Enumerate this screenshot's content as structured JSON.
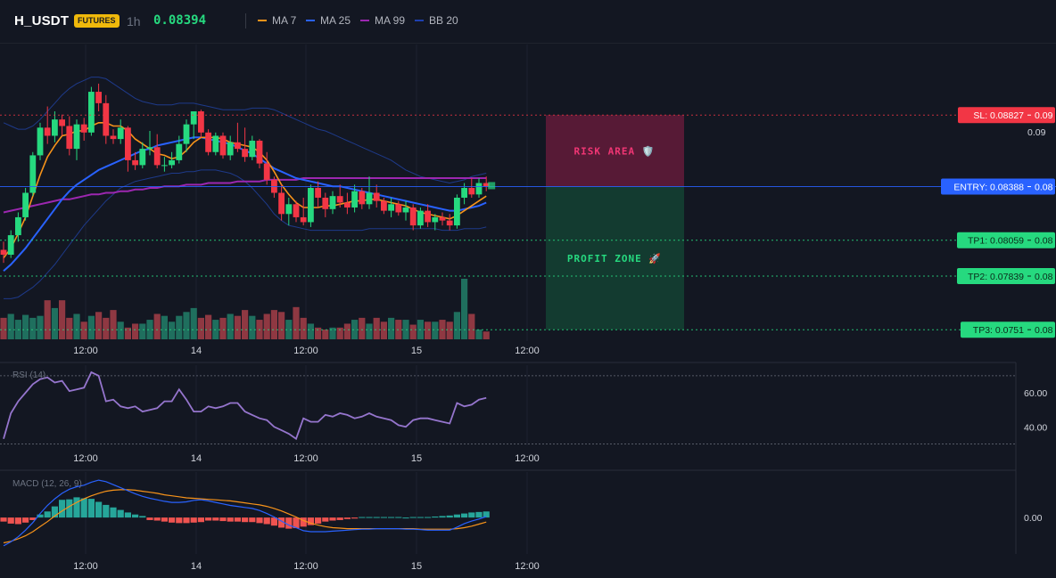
{
  "header": {
    "symbol": "H_USDT",
    "badge": "FUTURES",
    "timeframe": "1h",
    "price": "0.08394",
    "legend": [
      {
        "label": "MA 7",
        "color": "#f7931a"
      },
      {
        "label": "MA 25",
        "color": "#2962ff"
      },
      {
        "label": "MA 99",
        "color": "#9c27b0"
      },
      {
        "label": "BB 20",
        "color": "#1e40af"
      }
    ]
  },
  "colors": {
    "up": "#26d97f",
    "down": "#f23645",
    "vol_up": "#1f6f5e",
    "vol_down": "#8f3842",
    "sl": "#f23645",
    "entry": "#2962ff",
    "tp": "#26d97f",
    "rsi": "#9575cd",
    "macd": "#2962ff",
    "signal": "#f7931a",
    "hist_up": "#26a69a",
    "hist_down": "#ef5350"
  },
  "chart_data": [
    {
      "type": "candlestick",
      "title": "",
      "x_tick_labels": [
        "12:00",
        "14",
        "12:00",
        "15",
        "12:00"
      ],
      "y_tick_labels": [
        "0.09"
      ],
      "ylim": [
        0.0744,
        0.0926
      ],
      "candles": [
        [
          0.08,
          0.0805,
          0.0792,
          0.0797
        ],
        [
          0.0797,
          0.0812,
          0.0795,
          0.0809
        ],
        [
          0.0809,
          0.0823,
          0.0805,
          0.082
        ],
        [
          0.082,
          0.0838,
          0.0818,
          0.0835
        ],
        [
          0.0835,
          0.086,
          0.0833,
          0.0858
        ],
        [
          0.0858,
          0.0878,
          0.0855,
          0.0875
        ],
        [
          0.0875,
          0.0888,
          0.0865,
          0.087
        ],
        [
          0.087,
          0.0885,
          0.0866,
          0.088
        ],
        [
          0.088,
          0.0883,
          0.087,
          0.0876
        ],
        [
          0.0876,
          0.0882,
          0.0858,
          0.0862
        ],
        [
          0.0862,
          0.088,
          0.0855,
          0.0877
        ],
        [
          0.0877,
          0.0881,
          0.0867,
          0.0872
        ],
        [
          0.0872,
          0.09,
          0.087,
          0.0897
        ],
        [
          0.0897,
          0.0902,
          0.0885,
          0.089
        ],
        [
          0.089,
          0.0895,
          0.0865,
          0.087
        ],
        [
          0.087,
          0.0874,
          0.0865,
          0.0868
        ],
        [
          0.0868,
          0.088,
          0.0865,
          0.0875
        ],
        [
          0.0875,
          0.0876,
          0.0848,
          0.0855
        ],
        [
          0.0855,
          0.086,
          0.0849,
          0.0852
        ],
        [
          0.0852,
          0.0866,
          0.085,
          0.0862
        ],
        [
          0.0862,
          0.0873,
          0.0858,
          0.0863
        ],
        [
          0.0863,
          0.0871,
          0.085,
          0.0852
        ],
        [
          0.0852,
          0.0857,
          0.0848,
          0.0852
        ],
        [
          0.0852,
          0.086,
          0.085,
          0.0855
        ],
        [
          0.0855,
          0.087,
          0.0853,
          0.0865
        ],
        [
          0.0865,
          0.088,
          0.086,
          0.0877
        ],
        [
          0.0877,
          0.0884,
          0.0868,
          0.0885
        ],
        [
          0.0885,
          0.0886,
          0.0869,
          0.0872
        ],
        [
          0.0872,
          0.0874,
          0.0858,
          0.086
        ],
        [
          0.086,
          0.0872,
          0.0858,
          0.087
        ],
        [
          0.087,
          0.0872,
          0.0856,
          0.0858
        ],
        [
          0.0858,
          0.087,
          0.0855,
          0.0866
        ],
        [
          0.0866,
          0.0878,
          0.086,
          0.0862
        ],
        [
          0.0862,
          0.0875,
          0.0854,
          0.0857
        ],
        [
          0.0857,
          0.087,
          0.0855,
          0.0867
        ],
        [
          0.0867,
          0.0868,
          0.085,
          0.0853
        ],
        [
          0.0853,
          0.086,
          0.084,
          0.0843
        ],
        [
          0.0843,
          0.0845,
          0.0832,
          0.0835
        ],
        [
          0.0835,
          0.084,
          0.0818,
          0.0822
        ],
        [
          0.0822,
          0.0832,
          0.0815,
          0.0828
        ],
        [
          0.0828,
          0.083,
          0.0817,
          0.082
        ],
        [
          0.082,
          0.0832,
          0.0815,
          0.0817
        ],
        [
          0.0817,
          0.084,
          0.0814,
          0.0838
        ],
        [
          0.0838,
          0.0842,
          0.0826,
          0.0832
        ],
        [
          0.0832,
          0.0835,
          0.082,
          0.0825
        ],
        [
          0.0825,
          0.0836,
          0.0822,
          0.0833
        ],
        [
          0.0833,
          0.084,
          0.0826,
          0.0829
        ],
        [
          0.0829,
          0.0835,
          0.0822,
          0.0826
        ],
        [
          0.0826,
          0.084,
          0.0823,
          0.0836
        ],
        [
          0.0836,
          0.0838,
          0.0825,
          0.0828
        ],
        [
          0.0828,
          0.0845,
          0.0825,
          0.0835
        ],
        [
          0.0835,
          0.084,
          0.0826,
          0.083
        ],
        [
          0.083,
          0.0832,
          0.0822,
          0.0824
        ],
        [
          0.0824,
          0.0832,
          0.082,
          0.0828
        ],
        [
          0.0828,
          0.083,
          0.0821,
          0.0823
        ],
        [
          0.0823,
          0.083,
          0.0818,
          0.0826
        ],
        [
          0.0826,
          0.0828,
          0.0812,
          0.0815
        ],
        [
          0.0815,
          0.0826,
          0.0813,
          0.0824
        ],
        [
          0.0824,
          0.0828,
          0.0814,
          0.0817
        ],
        [
          0.0817,
          0.0822,
          0.0812,
          0.082
        ],
        [
          0.082,
          0.0823,
          0.0815,
          0.0818
        ],
        [
          0.0818,
          0.0822,
          0.0812,
          0.0815
        ],
        [
          0.0815,
          0.0834,
          0.0813,
          0.0832
        ],
        [
          0.0832,
          0.0841,
          0.0828,
          0.0838
        ],
        [
          0.0838,
          0.0844,
          0.0832,
          0.0834
        ],
        [
          0.0834,
          0.0844,
          0.0832,
          0.0841
        ],
        [
          0.0841,
          0.0845,
          0.0836,
          0.0839
        ]
      ],
      "volume": [
        22,
        26,
        20,
        25,
        22,
        24,
        40,
        32,
        40,
        22,
        26,
        18,
        24,
        28,
        22,
        30,
        18,
        12,
        16,
        16,
        20,
        26,
        24,
        18,
        24,
        28,
        32,
        22,
        25,
        20,
        22,
        26,
        24,
        30,
        24,
        20,
        26,
        30,
        28,
        20,
        33,
        22,
        16,
        12,
        10,
        12,
        12,
        16,
        20,
        22,
        16,
        22,
        18,
        22,
        20,
        20,
        15,
        20,
        18,
        18,
        20,
        18,
        28,
        62,
        26,
        10,
        8
      ],
      "moving_averages": {
        "MA 7": [
          0.0795,
          0.0801,
          0.081,
          0.082,
          0.0833,
          0.0846,
          0.0857,
          0.0864,
          0.087,
          0.0871,
          0.0873,
          0.0873,
          0.0876,
          0.0878,
          0.0878,
          0.0876,
          0.0876,
          0.0873,
          0.0868,
          0.0865,
          0.0862,
          0.0859,
          0.0858,
          0.0856,
          0.0857,
          0.0861,
          0.0866,
          0.0869,
          0.0869,
          0.0869,
          0.0868,
          0.0866,
          0.0865,
          0.0864,
          0.0863,
          0.086,
          0.0855,
          0.0848,
          0.084,
          0.0834,
          0.0829,
          0.0826,
          0.0826,
          0.0826,
          0.0827,
          0.0827,
          0.0828,
          0.0829,
          0.083,
          0.083,
          0.0831,
          0.0831,
          0.083,
          0.0829,
          0.0828,
          0.0827,
          0.0825,
          0.0823,
          0.0822,
          0.0821,
          0.082,
          0.0819,
          0.0821,
          0.0824,
          0.0827,
          0.083,
          0.0833
        ],
        "MA 25": [
          0.0787,
          0.0791,
          0.0796,
          0.0801,
          0.0807,
          0.0813,
          0.0819,
          0.0825,
          0.0831,
          0.0836,
          0.084,
          0.0843,
          0.0846,
          0.0849,
          0.0851,
          0.0853,
          0.0855,
          0.0857,
          0.0859,
          0.0861,
          0.0862,
          0.0864,
          0.0865,
          0.0866,
          0.0867,
          0.0868,
          0.0869,
          0.0869,
          0.0868,
          0.0867,
          0.0866,
          0.0865,
          0.0863,
          0.0861,
          0.0859,
          0.0856,
          0.0853,
          0.085,
          0.0848,
          0.0846,
          0.0844,
          0.0843,
          0.0842,
          0.0841,
          0.084,
          0.0839,
          0.0839,
          0.0838,
          0.0837,
          0.0836,
          0.0835,
          0.0834,
          0.0833,
          0.0832,
          0.0831,
          0.083,
          0.0829,
          0.0828,
          0.0827,
          0.0826,
          0.0825,
          0.0824,
          0.0824,
          0.0825,
          0.0826,
          0.0827,
          0.0829
        ],
        "MA 99": [
          0.0823,
          0.0824,
          0.0825,
          0.0826,
          0.0827,
          0.0828,
          0.0829,
          0.083,
          0.0831,
          0.0831,
          0.0832,
          0.0833,
          0.0834,
          0.0834,
          0.0835,
          0.0835,
          0.0836,
          0.0836,
          0.0837,
          0.0837,
          0.0838,
          0.0838,
          0.0839,
          0.0839,
          0.0839,
          0.084,
          0.084,
          0.084,
          0.0841,
          0.0841,
          0.0841,
          0.0841,
          0.0842,
          0.0842,
          0.0842,
          0.0842,
          0.0843,
          0.0843,
          0.0843,
          0.0843,
          0.0843,
          0.0844,
          0.0844,
          0.0844,
          0.0844,
          0.0844,
          0.0844,
          0.0844,
          0.0844,
          0.0844,
          0.0844,
          0.0844,
          0.0844,
          0.0844,
          0.0844,
          0.0844,
          0.0844,
          0.0844,
          0.0844,
          0.0844,
          0.0844,
          0.0844,
          0.0844,
          0.0844,
          0.0844,
          0.0844,
          0.0844
        ],
        "BB upper": [
          0.0878,
          0.0876,
          0.0874,
          0.0874,
          0.0876,
          0.088,
          0.0885,
          0.089,
          0.0895,
          0.0899,
          0.0902,
          0.0904,
          0.0906,
          0.0906,
          0.0905,
          0.0902,
          0.0899,
          0.0896,
          0.0893,
          0.0891,
          0.089,
          0.0889,
          0.0889,
          0.0889,
          0.089,
          0.089,
          0.089,
          0.0889,
          0.0888,
          0.0887,
          0.0886,
          0.0886,
          0.0886,
          0.0886,
          0.0887,
          0.0887,
          0.0887,
          0.0886,
          0.0884,
          0.0882,
          0.088,
          0.0878,
          0.0876,
          0.0874,
          0.0873,
          0.0871,
          0.0869,
          0.0867,
          0.0865,
          0.0863,
          0.0861,
          0.0859,
          0.0857,
          0.0855,
          0.0852,
          0.0849,
          0.0847,
          0.0845,
          0.0844,
          0.0843,
          0.0842,
          0.0841,
          0.0842,
          0.0843,
          0.0845,
          0.0846,
          0.0847
        ],
        "BB lower": [
          0.077,
          0.077,
          0.0771,
          0.0774,
          0.0777,
          0.0781,
          0.0786,
          0.0791,
          0.0797,
          0.0803,
          0.0809,
          0.0815,
          0.082,
          0.0825,
          0.083,
          0.0834,
          0.0838,
          0.084,
          0.0842,
          0.0843,
          0.0844,
          0.0845,
          0.0846,
          0.0847,
          0.0847,
          0.0848,
          0.0848,
          0.0849,
          0.0849,
          0.0849,
          0.0848,
          0.0847,
          0.0845,
          0.0842,
          0.0838,
          0.0833,
          0.0828,
          0.0822,
          0.0818,
          0.0815,
          0.0814,
          0.0813,
          0.0812,
          0.0812,
          0.0812,
          0.0812,
          0.0812,
          0.0812,
          0.0812,
          0.0812,
          0.0813,
          0.0813,
          0.0813,
          0.0813,
          0.0813,
          0.0813,
          0.0813,
          0.0813,
          0.0813,
          0.0813,
          0.0812,
          0.0812,
          0.0812,
          0.0813,
          0.0813,
          0.0813,
          0.0814
        ]
      },
      "levels": [
        {
          "label": "SL: 0.08827",
          "tag": "0.09",
          "value": 0.08827,
          "kind": "sl"
        },
        {
          "label": "ENTRY: 0.08388",
          "tag": "0.08",
          "value": 0.08388,
          "kind": "entry"
        },
        {
          "label": "TP1: 0.08059",
          "tag": "0.08",
          "value": 0.08059,
          "kind": "tp"
        },
        {
          "label": "TP2: 0.07839",
          "tag": "0.08",
          "value": 0.07839,
          "kind": "tp"
        },
        {
          "label": "TP3: 0.0751",
          "tag": "0.08",
          "value": 0.0751,
          "kind": "tp"
        }
      ],
      "zones": [
        {
          "label": "RISK AREA 🛡️",
          "from": 0.08388,
          "to": 0.08827,
          "kind": "risk"
        },
        {
          "label": "PROFIT ZONE 🚀",
          "from": 0.0751,
          "to": 0.08388,
          "kind": "profit"
        }
      ]
    },
    {
      "type": "line",
      "title": "RSI (14)",
      "y_tick_labels": [
        "60.00",
        "40.00"
      ],
      "ylim": [
        29.2,
        76.2
      ],
      "guides": [
        70,
        30
      ],
      "values": [
        33,
        48,
        55,
        60,
        65,
        68,
        69,
        66,
        67,
        61,
        62,
        63,
        72,
        70,
        55,
        56,
        52,
        51,
        52,
        49,
        50,
        51,
        55,
        55,
        62,
        56,
        49,
        49,
        52,
        51,
        52,
        54,
        54,
        49,
        47,
        45,
        44,
        40,
        38,
        36,
        33,
        45,
        43,
        43,
        47,
        46,
        48,
        47,
        45,
        46,
        48,
        46,
        45,
        44,
        41,
        40,
        44,
        45,
        45,
        44,
        43,
        42,
        54,
        52,
        53,
        56,
        57
      ]
    },
    {
      "type": "line",
      "title": "MACD (12, 26, 9)",
      "y_tick_labels": [
        "0.00"
      ],
      "ylim": [
        -7.2,
        9.0
      ],
      "macd": [
        -5.6,
        -4.8,
        -3.8,
        -2.5,
        -1.0,
        0.8,
        2.4,
        3.7,
        4.8,
        5.6,
        6.1,
        6.4,
        7.0,
        7.4,
        7.1,
        6.5,
        5.9,
        5.3,
        4.7,
        4.2,
        3.8,
        3.5,
        3.2,
        3.0,
        3.0,
        3.1,
        3.4,
        3.5,
        3.3,
        3.0,
        2.7,
        2.4,
        2.2,
        2.0,
        1.8,
        1.4,
        0.8,
        0.1,
        -0.7,
        -1.5,
        -2.0,
        -2.6,
        -2.8,
        -2.8,
        -2.8,
        -2.7,
        -2.6,
        -2.5,
        -2.4,
        -2.3,
        -2.3,
        -2.2,
        -2.2,
        -2.2,
        -2.2,
        -2.3,
        -2.3,
        -2.4,
        -2.5,
        -2.5,
        -2.5,
        -2.5,
        -1.9,
        -1.2,
        -0.7,
        -0.3,
        0.2
      ],
      "signal": [
        -5.0,
        -4.7,
        -4.2,
        -3.6,
        -2.8,
        -1.8,
        -0.8,
        0.3,
        1.3,
        2.2,
        3.0,
        3.7,
        4.3,
        4.8,
        5.2,
        5.4,
        5.5,
        5.5,
        5.4,
        5.2,
        5.0,
        4.8,
        4.5,
        4.3,
        4.1,
        3.9,
        3.8,
        3.7,
        3.6,
        3.5,
        3.4,
        3.3,
        3.1,
        2.9,
        2.7,
        2.5,
        2.2,
        1.8,
        1.3,
        0.7,
        0.1,
        -0.6,
        -1.1,
        -1.5,
        -1.8,
        -2.0,
        -2.1,
        -2.2,
        -2.2,
        -2.2,
        -2.2,
        -2.2,
        -2.2,
        -2.2,
        -2.2,
        -2.2,
        -2.2,
        -2.3,
        -2.3,
        -2.3,
        -2.3,
        -2.3,
        -2.2,
        -2.0,
        -1.7,
        -1.3,
        -0.9
      ],
      "histogram": [
        -0.8,
        -1.2,
        -1.3,
        -1.0,
        -0.5,
        0.6,
        1.2,
        2.2,
        3.5,
        3.6,
        4.0,
        3.8,
        3.7,
        3.1,
        2.5,
        2.0,
        1.5,
        1.0,
        0.6,
        0.3,
        -0.5,
        -0.6,
        -0.8,
        -1.0,
        -1.1,
        -1.1,
        -1.0,
        -0.9,
        -0.6,
        -0.6,
        -0.7,
        -0.8,
        -0.8,
        -0.9,
        -0.9,
        -1.1,
        -1.3,
        -1.6,
        -2.0,
        -2.2,
        -2.1,
        -1.8,
        -1.5,
        -1.2,
        -0.8,
        -0.6,
        -0.5,
        -0.3,
        -0.2,
        0.1,
        0.1,
        0.1,
        0.1,
        0.1,
        0.1,
        0.0,
        0.1,
        0.1,
        0.1,
        0.2,
        0.3,
        0.4,
        0.6,
        0.8,
        1.0,
        1.1,
        1.2
      ]
    }
  ]
}
